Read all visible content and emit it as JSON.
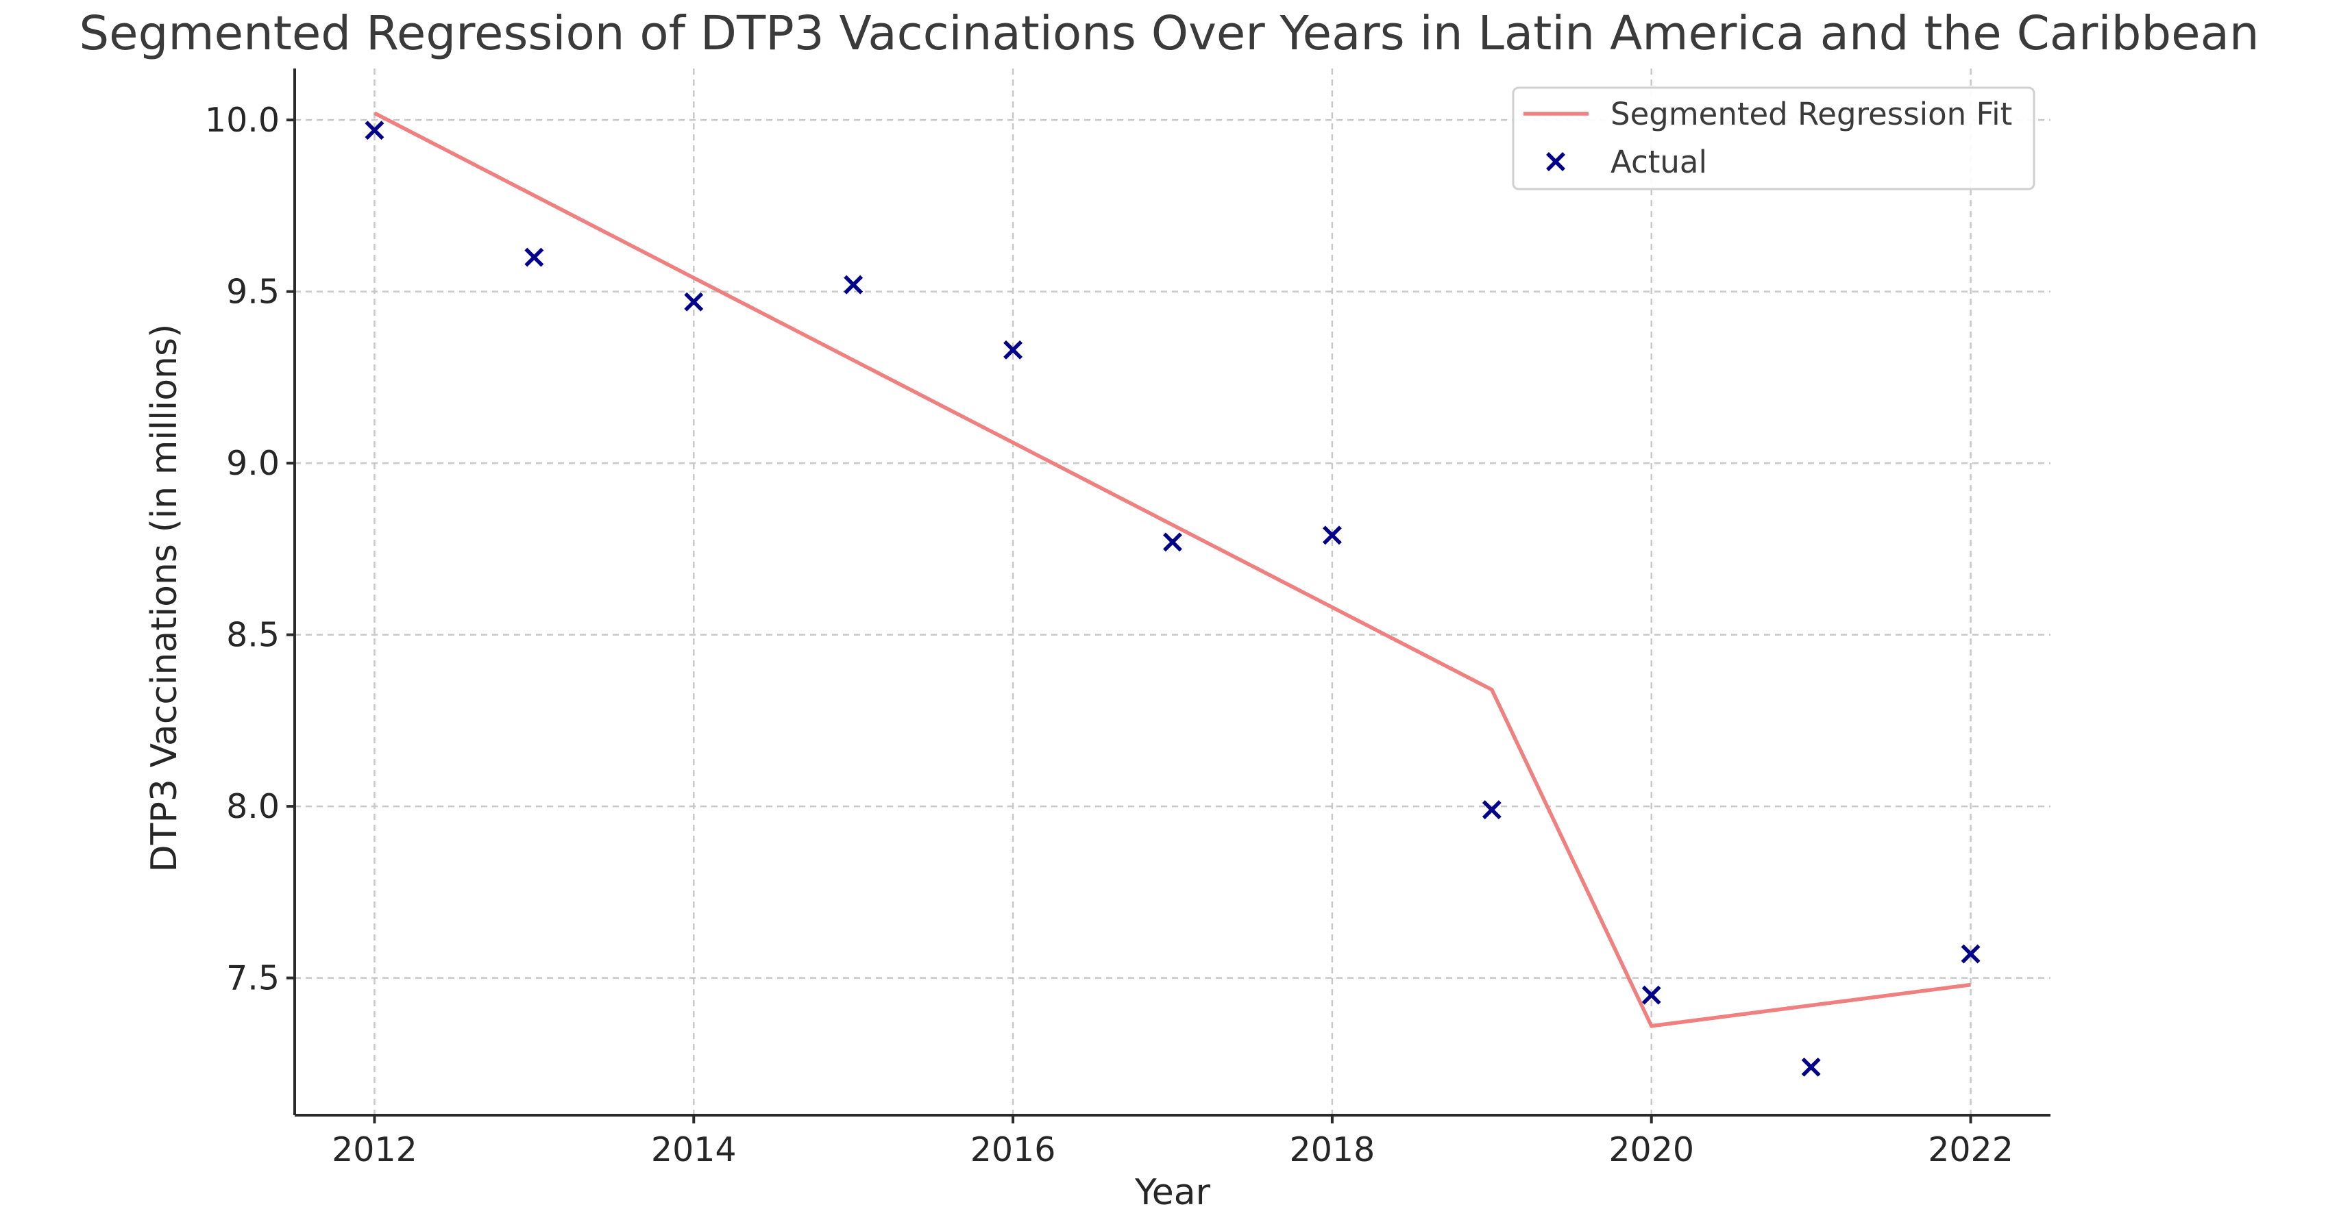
{
  "chart_data": {
    "type": "line",
    "title": "Segmented Regression of DTP3 Vaccinations Over Years in Latin America and the Caribbean",
    "xlabel": "Year",
    "ylabel": "DTP3 Vaccinations (in millions)",
    "xlim": [
      2011.5,
      2022.5
    ],
    "ylim": [
      7.1,
      10.15
    ],
    "x_ticks": [
      2012,
      2014,
      2016,
      2018,
      2020,
      2022
    ],
    "x_tick_labels": [
      "2012",
      "2014",
      "2016",
      "2018",
      "2020",
      "2022"
    ],
    "y_ticks": [
      7.5,
      8.0,
      8.5,
      9.0,
      9.5,
      10.0
    ],
    "y_tick_labels": [
      "7.5",
      "8.0",
      "8.5",
      "9.0",
      "9.5",
      "10.0"
    ],
    "grid": true,
    "legend_position": "top-right",
    "series": [
      {
        "name": "Segmented Regression Fit",
        "kind": "line",
        "color": "#f08080",
        "x": [
          2012,
          2019,
          2020,
          2022
        ],
        "y": [
          10.02,
          8.34,
          7.36,
          7.48
        ]
      },
      {
        "name": "Actual",
        "kind": "scatter",
        "marker": "x",
        "color": "#00008b",
        "x": [
          2012,
          2013,
          2014,
          2015,
          2016,
          2017,
          2018,
          2019,
          2020,
          2021,
          2022
        ],
        "y": [
          9.97,
          9.6,
          9.47,
          9.52,
          9.33,
          8.77,
          8.79,
          7.99,
          7.45,
          7.24,
          7.57
        ]
      }
    ]
  }
}
